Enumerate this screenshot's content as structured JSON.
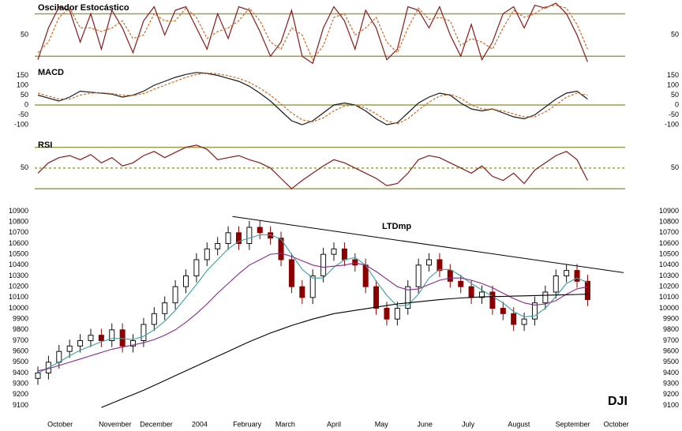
{
  "chart_data": [
    {
      "type": "line",
      "title": "Oscilador Estocástico",
      "x": [
        0,
        1,
        2,
        3,
        4,
        5,
        6,
        7,
        8,
        9,
        10,
        11,
        12,
        13,
        14,
        15,
        16,
        17,
        18,
        19,
        20,
        21,
        22,
        23,
        24,
        25,
        26,
        27,
        28,
        29,
        30,
        31,
        32,
        33,
        34,
        35,
        36,
        37,
        38,
        39,
        40,
        41,
        42,
        43,
        44,
        45,
        46,
        47,
        48,
        49,
        50,
        51,
        52
      ],
      "series": [
        {
          "color": "#8b1a1a",
          "values": [
            15,
            60,
            90,
            85,
            40,
            80,
            30,
            85,
            60,
            25,
            70,
            90,
            50,
            85,
            90,
            60,
            30,
            80,
            45,
            90,
            85,
            55,
            20,
            40,
            85,
            20,
            10,
            60,
            90,
            70,
            30,
            85,
            60,
            15,
            30,
            90,
            85,
            60,
            90,
            50,
            20,
            65,
            15,
            40,
            80,
            90,
            60,
            92,
            88,
            95,
            80,
            50,
            12
          ]
        },
        {
          "color": "#d2691e",
          "dashed": true,
          "values": [
            25,
            40,
            75,
            88,
            60,
            60,
            55,
            60,
            70,
            45,
            50,
            80,
            70,
            70,
            88,
            75,
            45,
            55,
            60,
            70,
            88,
            70,
            40,
            30,
            60,
            50,
            15,
            35,
            75,
            80,
            50,
            60,
            75,
            40,
            25,
            60,
            88,
            72,
            75,
            70,
            35,
            45,
            40,
            30,
            60,
            85,
            75,
            80,
            90,
            92,
            88,
            65,
            30
          ]
        }
      ],
      "ylim": [
        8,
        95
      ],
      "yticks": [
        50
      ],
      "hlines": [
        {
          "value": 80
        },
        {
          "value": 20
        }
      ],
      "hline_color": "#9aa04a"
    },
    {
      "type": "line",
      "title": "MACD",
      "x": [
        0,
        1,
        2,
        3,
        4,
        5,
        6,
        7,
        8,
        9,
        10,
        11,
        12,
        13,
        14,
        15,
        16,
        17,
        18,
        19,
        20,
        21,
        22,
        23,
        24,
        25,
        26,
        27,
        28,
        29,
        30,
        31,
        32,
        33,
        34,
        35,
        36,
        37,
        38,
        39,
        40,
        41,
        42,
        43,
        44,
        45,
        46,
        47,
        48,
        49,
        50,
        51,
        52
      ],
      "series": [
        {
          "color": "#1a1a1a",
          "values": [
            50,
            35,
            20,
            40,
            70,
            65,
            60,
            55,
            40,
            50,
            70,
            100,
            120,
            140,
            155,
            165,
            160,
            150,
            135,
            120,
            95,
            60,
            20,
            -30,
            -80,
            -100,
            -80,
            -40,
            0,
            10,
            0,
            -30,
            -70,
            -100,
            -90,
            -40,
            10,
            40,
            60,
            50,
            10,
            -20,
            -30,
            -20,
            -40,
            -60,
            -70,
            -50,
            -10,
            30,
            60,
            70,
            30
          ]
        },
        {
          "color": "#d2691e",
          "dashed": true,
          "values": [
            60,
            45,
            30,
            30,
            50,
            60,
            62,
            58,
            50,
            48,
            58,
            80,
            100,
            120,
            140,
            155,
            162,
            158,
            148,
            135,
            115,
            85,
            50,
            5,
            -40,
            -75,
            -85,
            -65,
            -30,
            -5,
            0,
            -15,
            -45,
            -80,
            -95,
            -70,
            -25,
            15,
            45,
            55,
            35,
            0,
            -20,
            -22,
            -30,
            -45,
            -60,
            -60,
            -35,
            0,
            40,
            60,
            50
          ]
        }
      ],
      "ylim": [
        -140,
        180
      ],
      "yticks": [
        150,
        100,
        50,
        0,
        -50,
        -100
      ],
      "hlines": [
        {
          "value": 0
        }
      ],
      "hline_color": "#9aa04a"
    },
    {
      "type": "line",
      "title": "RSI",
      "x": [
        0,
        1,
        2,
        3,
        4,
        5,
        6,
        7,
        8,
        9,
        10,
        11,
        12,
        13,
        14,
        15,
        16,
        17,
        18,
        19,
        20,
        21,
        22,
        23,
        24,
        25,
        26,
        27,
        28,
        29,
        30,
        31,
        32,
        33,
        34,
        35,
        36,
        37,
        38,
        39,
        40,
        41,
        42,
        43,
        44,
        45,
        46,
        47,
        48,
        49,
        50,
        51,
        52
      ],
      "series": [
        {
          "color": "#8b1a1a",
          "values": [
            45,
            55,
            60,
            62,
            58,
            63,
            55,
            60,
            52,
            55,
            62,
            66,
            60,
            65,
            70,
            72,
            68,
            58,
            60,
            62,
            58,
            55,
            50,
            40,
            30,
            38,
            45,
            52,
            58,
            55,
            50,
            45,
            40,
            33,
            35,
            45,
            58,
            62,
            60,
            55,
            50,
            45,
            52,
            42,
            38,
            45,
            35,
            48,
            55,
            62,
            66,
            58,
            38
          ]
        }
      ],
      "ylim": [
        24,
        75
      ],
      "yticks": [
        50
      ],
      "hlines": [
        {
          "value": 70
        },
        {
          "value": 50,
          "dashed": true
        },
        {
          "value": 30
        }
      ],
      "hline_color": "#9aa04a"
    },
    {
      "type": "candlestick",
      "trend_label": "LTDmp",
      "symbol": "DJI",
      "x": [
        0,
        1,
        2,
        3,
        4,
        5,
        6,
        7,
        8,
        9,
        10,
        11,
        12,
        13,
        14,
        15,
        16,
        17,
        18,
        19,
        20,
        21,
        22,
        23,
        24,
        25,
        26,
        27,
        28,
        29,
        30,
        31,
        32,
        33,
        34,
        35,
        36,
        37,
        38,
        39,
        40,
        41,
        42,
        43,
        44,
        45,
        46,
        47,
        48,
        49,
        50,
        51,
        52
      ],
      "open": [
        9350,
        9400,
        9500,
        9600,
        9650,
        9700,
        9750,
        9700,
        9800,
        9650,
        9700,
        9850,
        9950,
        10050,
        10200,
        10300,
        10450,
        10550,
        10600,
        10700,
        10600,
        10750,
        10700,
        10650,
        10450,
        10200,
        10100,
        10300,
        10500,
        10550,
        10450,
        10400,
        10200,
        10000,
        9900,
        10000,
        10200,
        10400,
        10450,
        10350,
        10250,
        10200,
        10100,
        10150,
        10000,
        9950,
        9850,
        9900,
        10050,
        10150,
        10300,
        10350,
        10250
      ],
      "high": [
        9460,
        9560,
        9660,
        9710,
        9760,
        9810,
        9810,
        9860,
        9860,
        9760,
        9910,
        10010,
        10110,
        10260,
        10360,
        10510,
        10610,
        10660,
        10760,
        10760,
        10810,
        10810,
        10760,
        10710,
        10510,
        10260,
        10360,
        10560,
        10610,
        10610,
        10510,
        10460,
        10260,
        10060,
        10060,
        10260,
        10460,
        10510,
        10510,
        10410,
        10310,
        10260,
        10210,
        10210,
        10060,
        10010,
        9960,
        10110,
        10210,
        10360,
        10410,
        10410,
        10310
      ],
      "low": [
        9290,
        9340,
        9440,
        9540,
        9590,
        9640,
        9640,
        9640,
        9590,
        9590,
        9640,
        9790,
        9890,
        9990,
        10140,
        10240,
        10390,
        10490,
        10540,
        10540,
        10540,
        10640,
        10590,
        10390,
        10140,
        10040,
        10040,
        10240,
        10440,
        10390,
        10340,
        10140,
        9940,
        9840,
        9840,
        9940,
        10140,
        10340,
        10290,
        10190,
        10140,
        10040,
        10040,
        9940,
        9890,
        9790,
        9790,
        9840,
        9990,
        10090,
        10240,
        10190,
        10020
      ],
      "close": [
        9400,
        9500,
        9600,
        9650,
        9700,
        9750,
        9700,
        9800,
        9650,
        9700,
        9850,
        9950,
        10050,
        10200,
        10300,
        10450,
        10550,
        10600,
        10700,
        10600,
        10750,
        10700,
        10650,
        10450,
        10200,
        10100,
        10300,
        10500,
        10550,
        10450,
        10400,
        10200,
        10000,
        9900,
        10000,
        10200,
        10400,
        10450,
        10350,
        10250,
        10200,
        10100,
        10150,
        10000,
        9950,
        9850,
        9900,
        10050,
        10150,
        10300,
        10350,
        10250,
        10080
      ],
      "up_color": "#111111",
      "down_color": "#8b0000",
      "series": [
        {
          "color": "#3aa0a0",
          "values": [
            9400,
            9450,
            9500,
            9560,
            9610,
            9650,
            9690,
            9720,
            9720,
            9710,
            9740,
            9800,
            9880,
            9980,
            10100,
            10220,
            10350,
            10450,
            10550,
            10620,
            10650,
            10680,
            10680,
            10640,
            10500,
            10360,
            10280,
            10280,
            10380,
            10450,
            10470,
            10400,
            10250,
            10120,
            10020,
            10030,
            10130,
            10280,
            10360,
            10360,
            10300,
            10230,
            10170,
            10110,
            10050,
            9970,
            9920,
            9930,
            10000,
            10110,
            10230,
            10280,
            10240
          ]
        },
        {
          "color": "#8a2a8a",
          "values": [
            9420,
            9440,
            9470,
            9500,
            9530,
            9560,
            9590,
            9620,
            9640,
            9660,
            9680,
            9710,
            9750,
            9800,
            9870,
            9950,
            10040,
            10140,
            10230,
            10320,
            10400,
            10450,
            10500,
            10510,
            10480,
            10440,
            10400,
            10380,
            10390,
            10400,
            10420,
            10400,
            10340,
            10270,
            10200,
            10170,
            10180,
            10220,
            10260,
            10280,
            10280,
            10260,
            10230,
            10190,
            10140,
            10090,
            10050,
            10030,
            10040,
            10070,
            10130,
            10180,
            10200
          ]
        },
        {
          "color": "#000000",
          "values": [
            null,
            null,
            null,
            null,
            null,
            null,
            9080,
            9120,
            9160,
            9200,
            9240,
            9285,
            9330,
            9375,
            9420,
            9465,
            9510,
            9555,
            9600,
            9645,
            9690,
            9730,
            9770,
            9805,
            9840,
            9870,
            9900,
            9925,
            9950,
            9965,
            9980,
            9995,
            10010,
            10025,
            10040,
            10050,
            10060,
            10070,
            10080,
            10088,
            10095,
            10100,
            10105,
            10108,
            10110,
            10113,
            10115,
            10118,
            10120,
            10123,
            10125,
            10128,
            10130
          ]
        }
      ],
      "trendline": {
        "x": [
          18.4,
          55.4
        ],
        "values": [
          10850,
          10330
        ],
        "color": "#000000"
      },
      "xlim": [
        0,
        56
      ],
      "xticks": [
        {
          "value": 2.1,
          "label": "October"
        },
        {
          "value": 7.3,
          "label": "November"
        },
        {
          "value": 11.2,
          "label": "December"
        },
        {
          "value": 15.3,
          "label": "2004"
        },
        {
          "value": 19.8,
          "label": "February"
        },
        {
          "value": 23.4,
          "label": "March"
        },
        {
          "value": 28,
          "label": "April"
        },
        {
          "value": 32.5,
          "label": "May"
        },
        {
          "value": 36.6,
          "label": "June"
        },
        {
          "value": 40.7,
          "label": "July"
        },
        {
          "value": 45.5,
          "label": "August"
        },
        {
          "value": 50.6,
          "label": "September"
        },
        {
          "value": 54.7,
          "label": "October"
        }
      ],
      "ylim": [
        9060,
        10940
      ],
      "yticks": [
        9100,
        9200,
        9300,
        9400,
        9500,
        9600,
        9700,
        9800,
        9900,
        10000,
        10100,
        10200,
        10300,
        10400,
        10500,
        10600,
        10700,
        10800,
        10900
      ]
    }
  ]
}
